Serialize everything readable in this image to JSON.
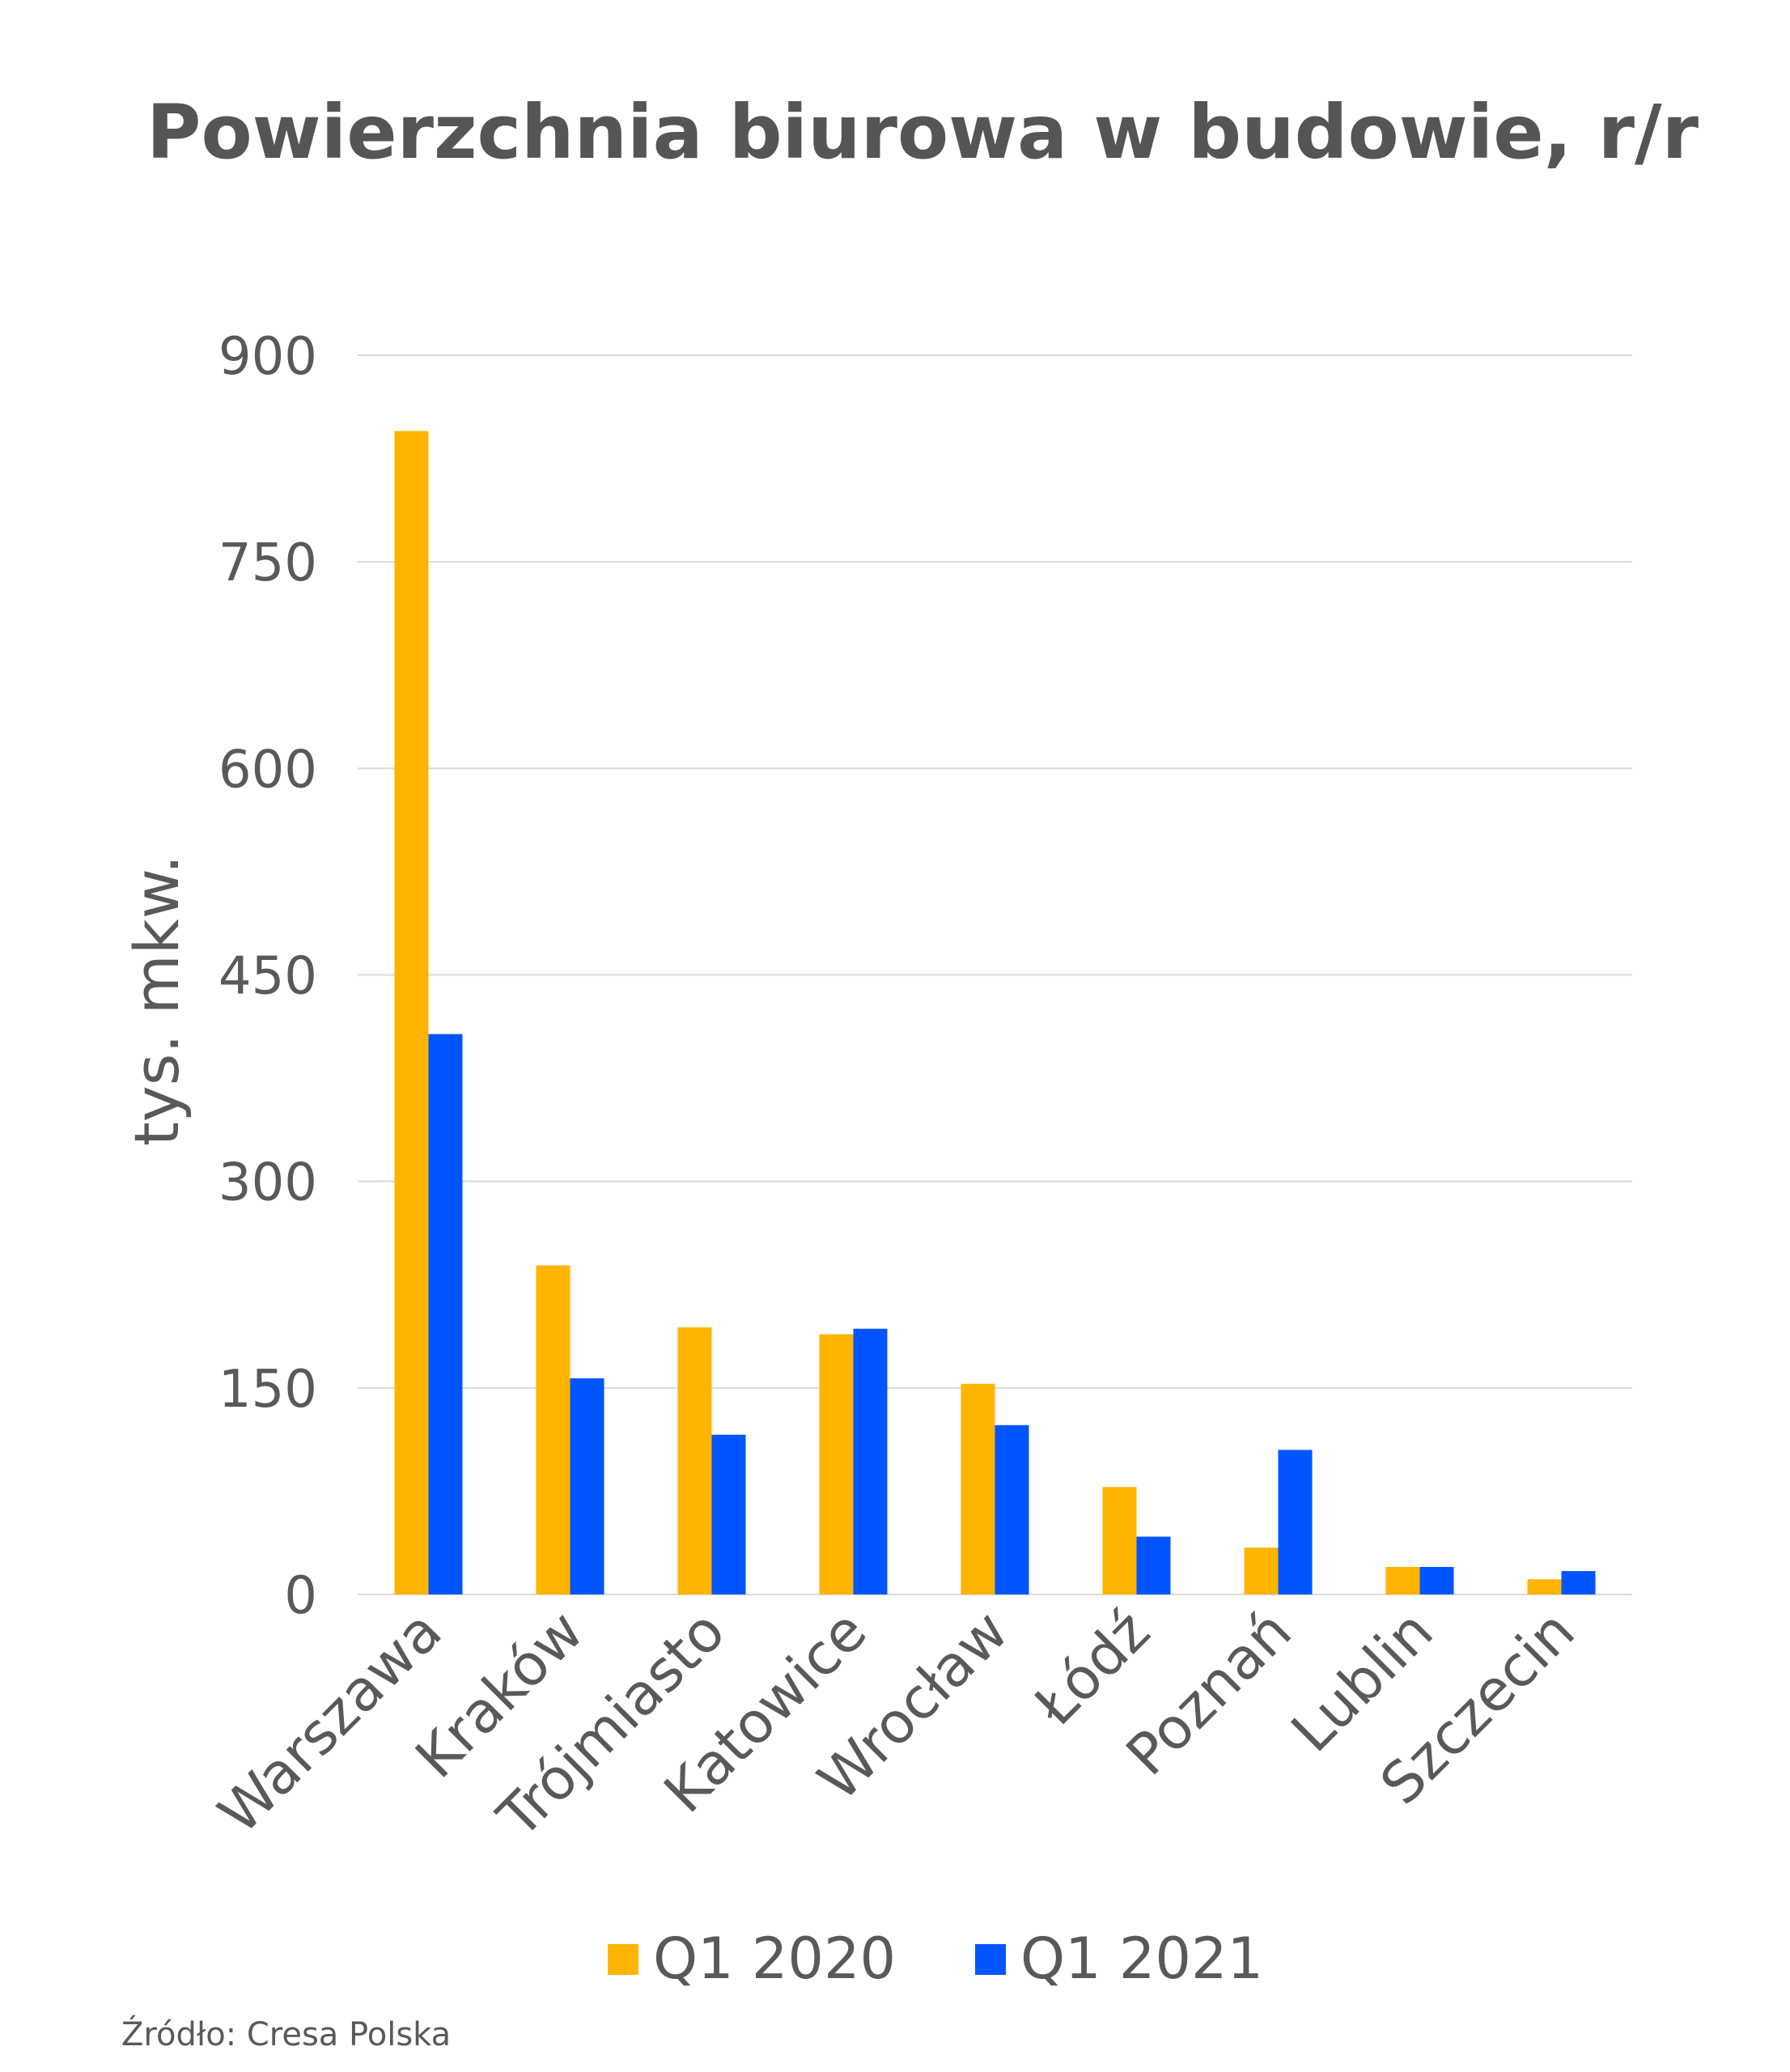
{
  "chart_data": {
    "type": "bar",
    "title": "Powierzchnia biurowa w budowie, r/r",
    "xlabel": "",
    "ylabel": "tys. mkw.",
    "ylim": [
      0,
      900
    ],
    "yticks": [
      0,
      150,
      300,
      450,
      600,
      750,
      900
    ],
    "grid": true,
    "legend_position": "bottom",
    "categories": [
      "Warszawa",
      "Kraków",
      "Trójmiasto",
      "Katowice",
      "Wrocław",
      "Łódź",
      "Poznań",
      "Lublin",
      "Szczecin"
    ],
    "series": [
      {
        "name": "Q1 2020",
        "color": "#FFB400",
        "values": [
          845,
          239,
          194,
          189,
          153,
          78,
          34,
          20,
          11
        ]
      },
      {
        "name": "Q1 2021",
        "color": "#0055FF",
        "values": [
          407,
          157,
          116,
          193,
          123,
          42,
          105,
          20,
          17
        ]
      }
    ],
    "source": "Źródło: Cresa Polska"
  }
}
